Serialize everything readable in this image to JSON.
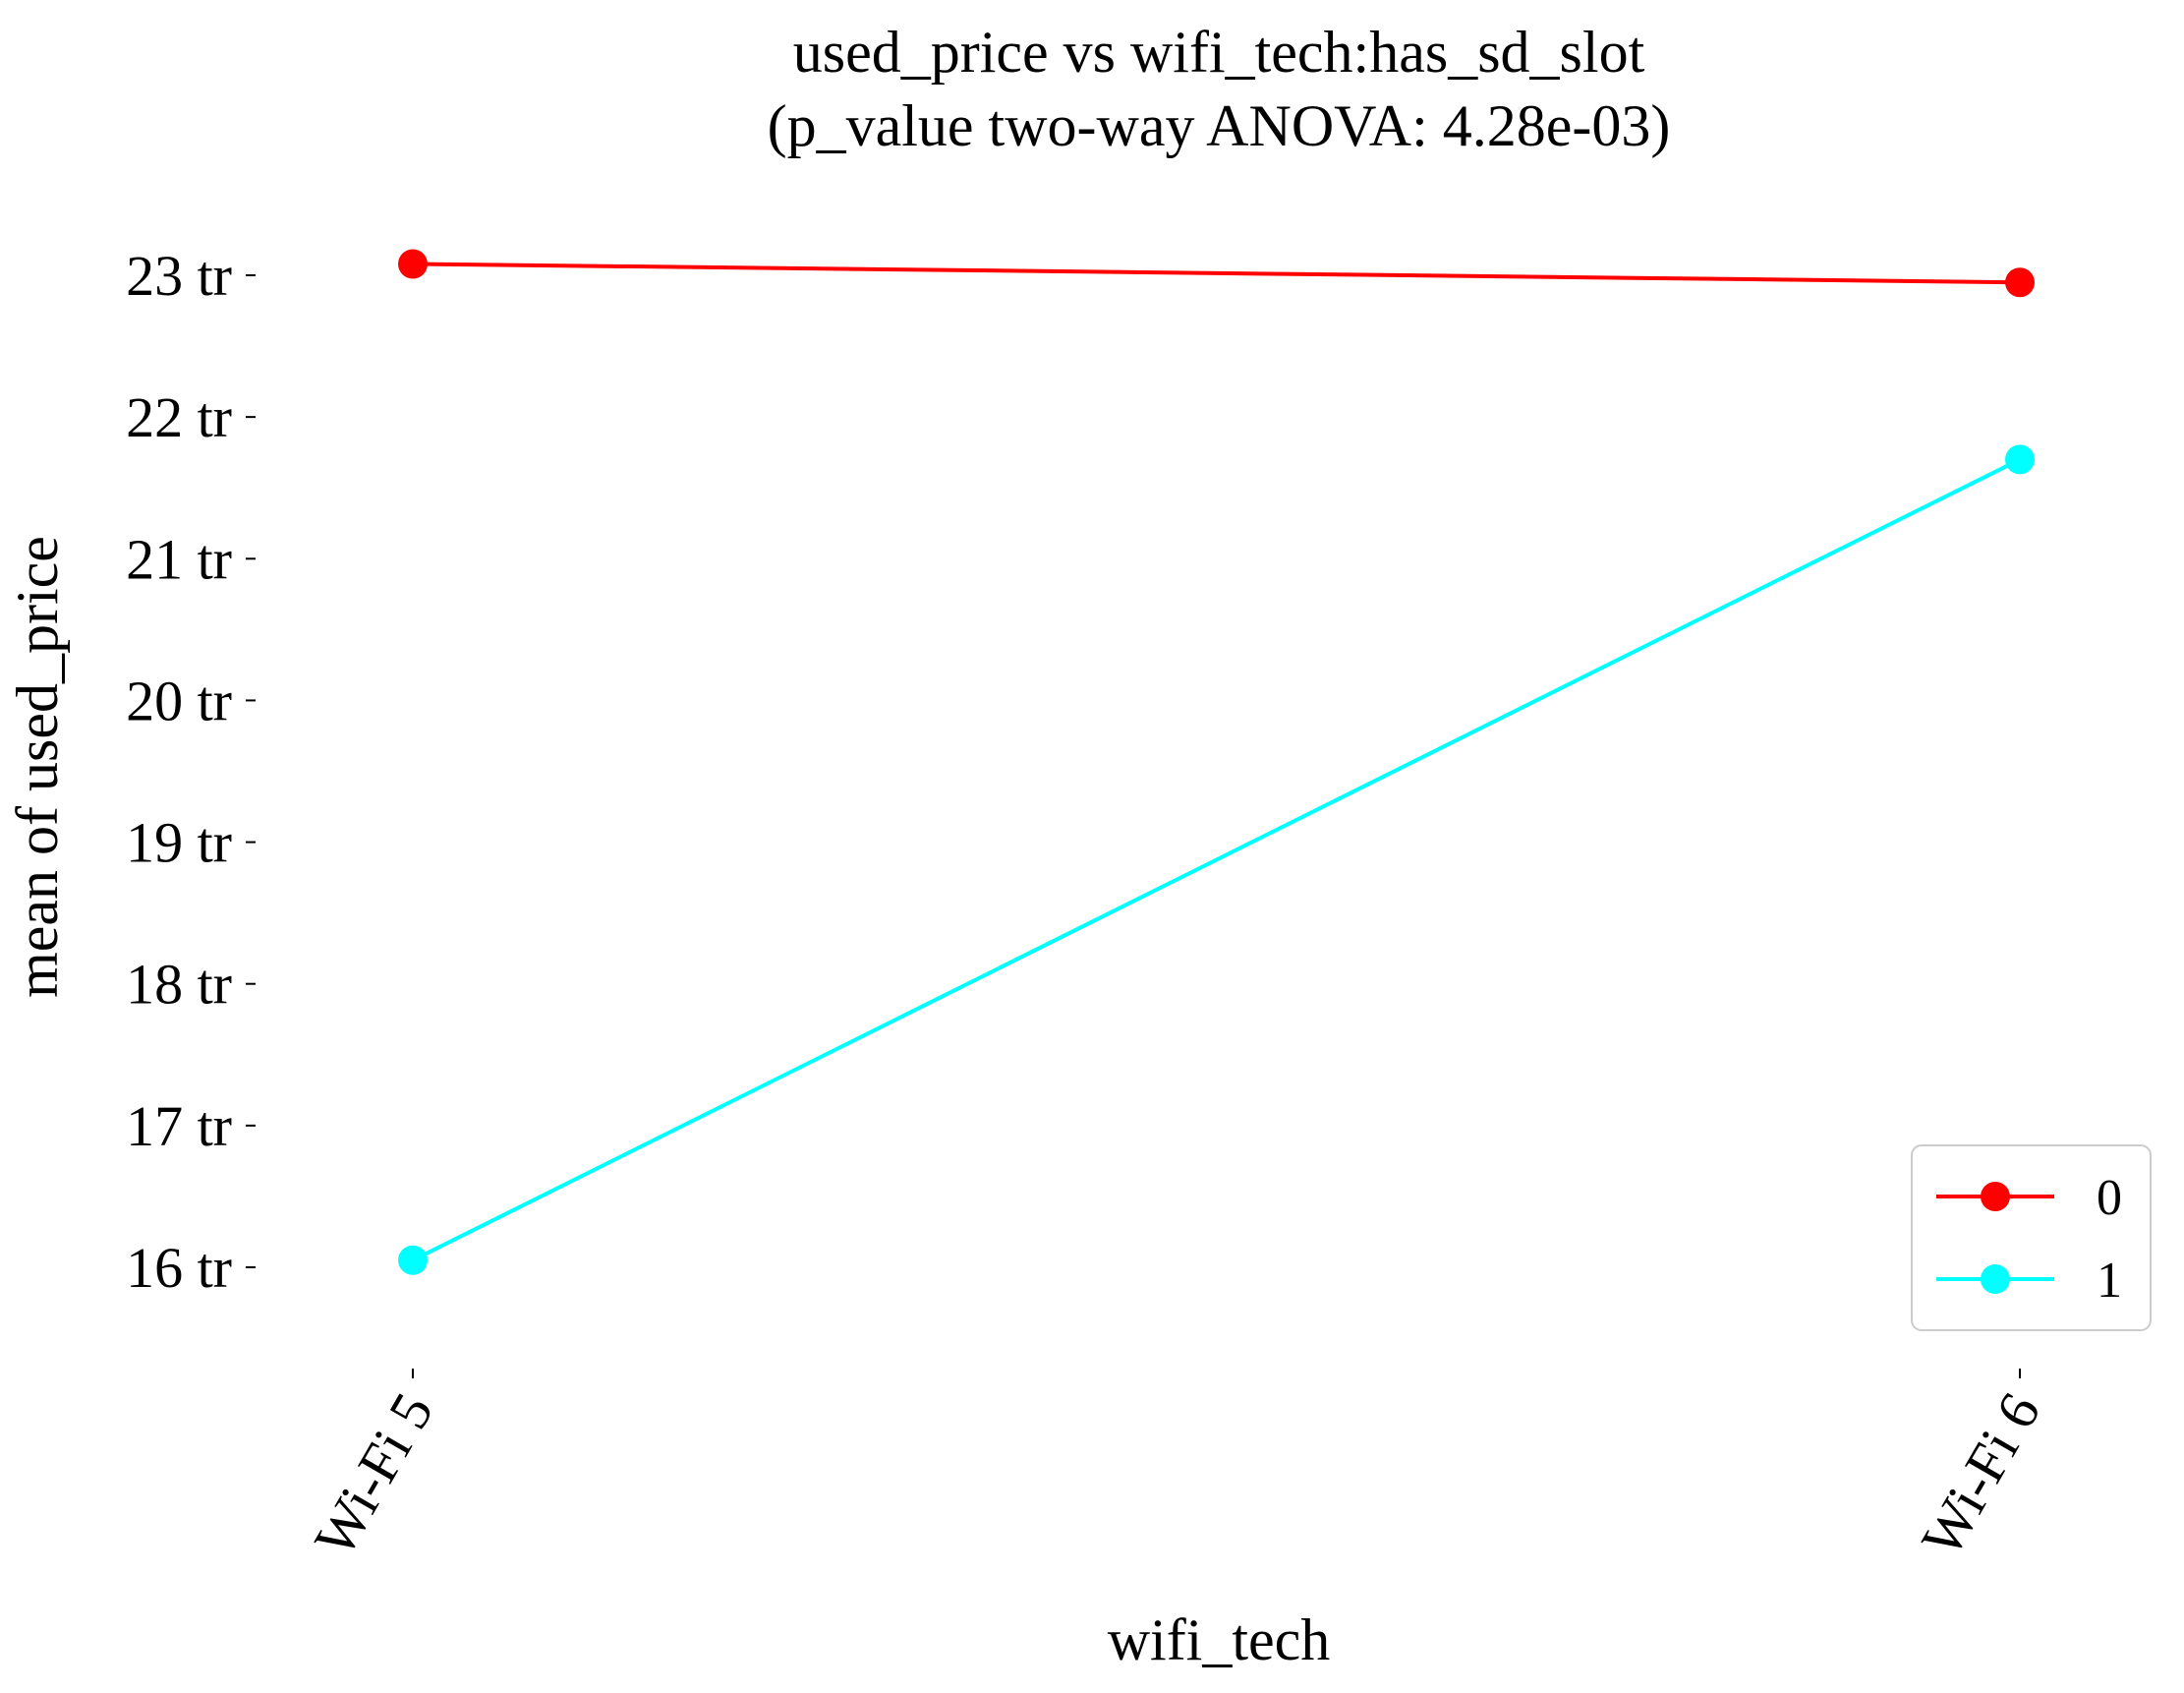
{
  "chart_data": {
    "type": "line",
    "title": "used_price vs wifi_tech:has_sd_slot",
    "subtitle": "(p_value two-way ANOVA: 4.28e-03)",
    "xlabel": "wifi_tech",
    "ylabel": "mean of used_price",
    "categories": [
      "Wi-Fi 5",
      "Wi-Fi 6"
    ],
    "y_ticks": [
      16,
      17,
      18,
      19,
      20,
      21,
      22,
      23
    ],
    "y_tick_labels": [
      "16 tr",
      "17 tr",
      "18 tr",
      "19 tr",
      "20 tr",
      "21 tr",
      "22 tr",
      "23 tr"
    ],
    "ylim": [
      15.3,
      23.5
    ],
    "grid": false,
    "legend_position": "bottom-right",
    "series": [
      {
        "name": "0",
        "color": "#ff0000",
        "values": [
          23.08,
          22.95
        ]
      },
      {
        "name": "1",
        "color": "#00ffff",
        "values": [
          16.05,
          21.7
        ]
      }
    ]
  }
}
